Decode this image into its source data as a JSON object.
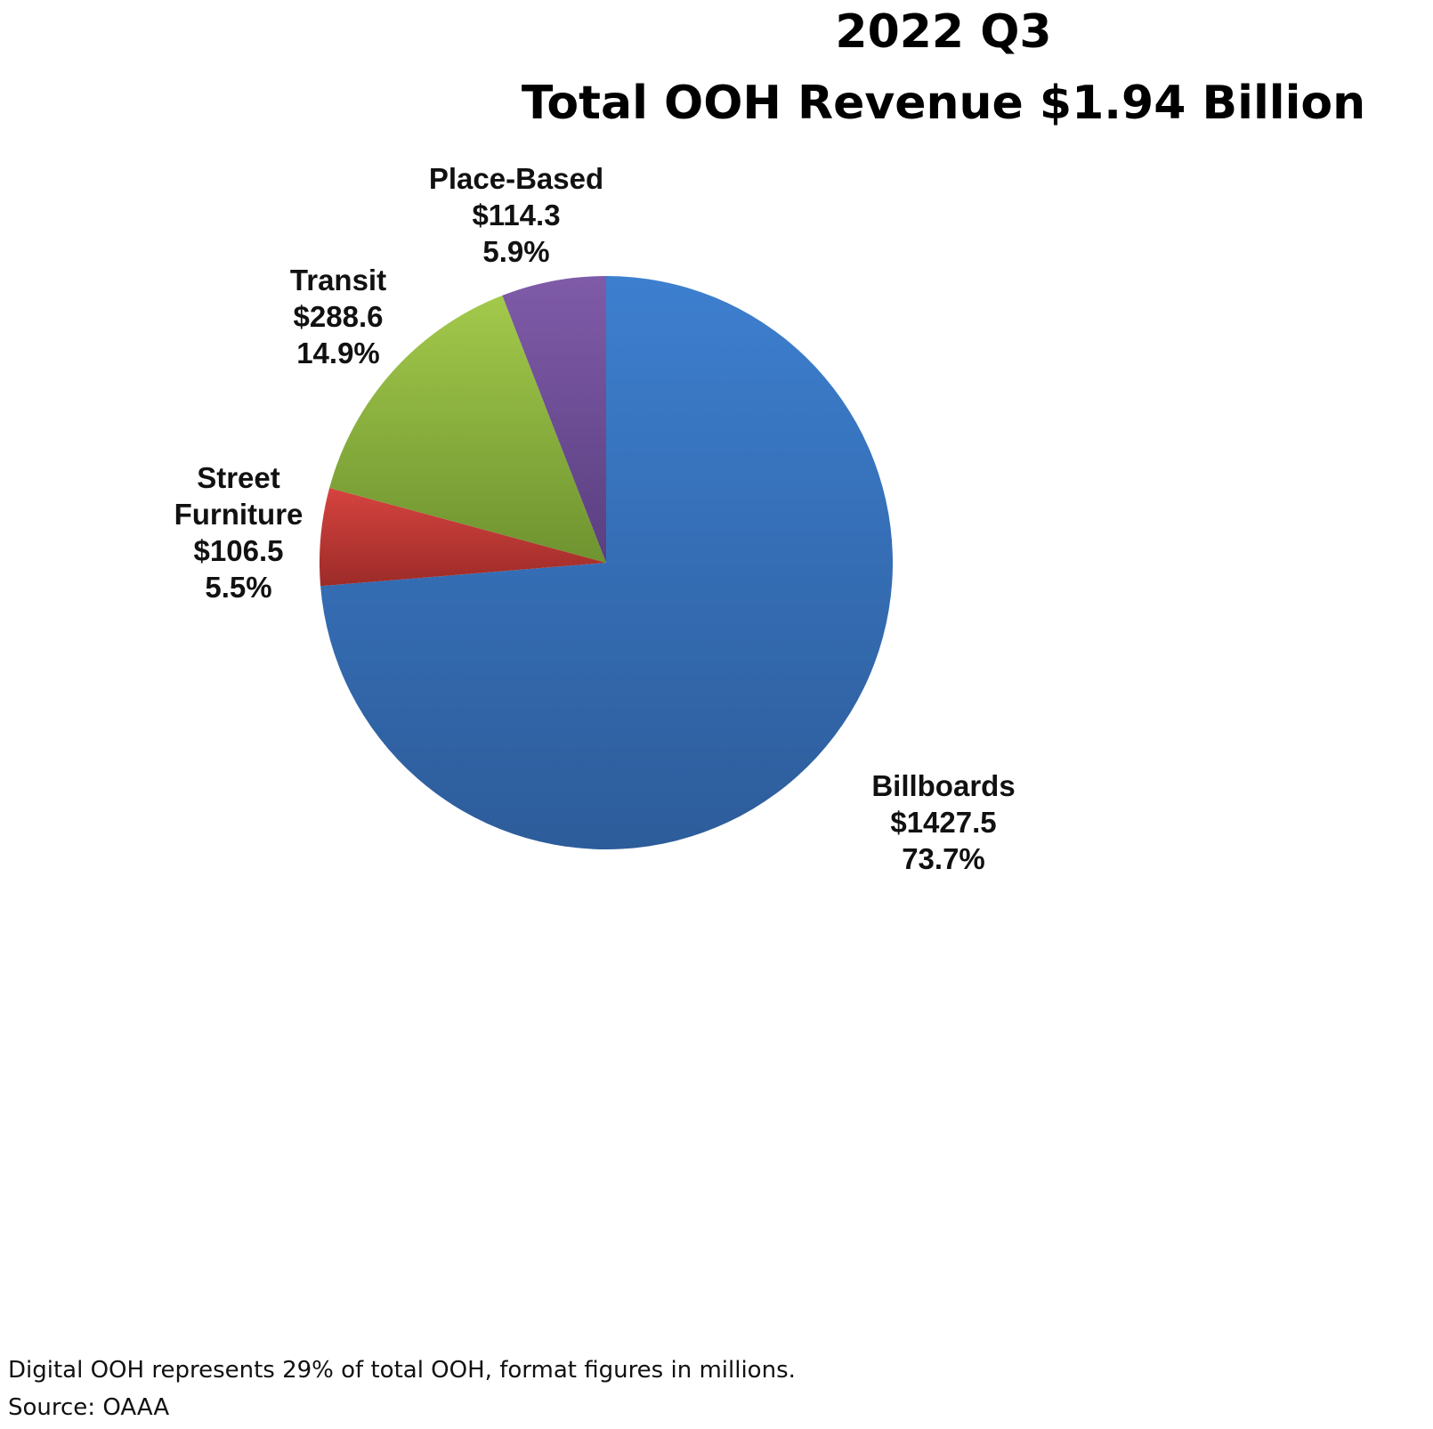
{
  "chart_data": {
    "type": "pie",
    "title": "2022 Q3",
    "subtitle": "Total OOH Revenue $1.94 Billion",
    "slices": [
      {
        "name": "Billboards",
        "value": 1427.5,
        "value_label": "$1427.5",
        "percent": 73.7,
        "percent_label": "73.7%",
        "color_top": "#3d7fcf",
        "color_bottom": "#2d5c9a"
      },
      {
        "name": "Street Furniture",
        "value": 106.5,
        "value_label": "$106.5",
        "percent": 5.5,
        "percent_label": "5.5%",
        "color_top": "#d6433f",
        "color_bottom": "#9c2b28"
      },
      {
        "name": "Transit",
        "value": 288.6,
        "value_label": "$288.6",
        "percent": 14.9,
        "percent_label": "14.9%",
        "color_top": "#a3c94b",
        "color_bottom": "#6e9330"
      },
      {
        "name": "Place-Based",
        "value": 114.3,
        "value_label": "$114.3",
        "percent": 5.9,
        "percent_label": "5.9%",
        "color_top": "#7f5ba8",
        "color_bottom": "#5a3f80"
      }
    ],
    "start_angle": "12 o'clock",
    "direction": "clockwise",
    "legend": "none"
  },
  "labels": {
    "billboards": {
      "line1": "Billboards",
      "line2": "$1427.5",
      "line3": "73.7%"
    },
    "street_furniture": {
      "line1": "Street",
      "line2": "Furniture",
      "line3": "$106.5",
      "line4": "5.5%"
    },
    "transit": {
      "line1": "Transit",
      "line2": "$288.6",
      "line3": "14.9%"
    },
    "place_based": {
      "line1": "Place-Based",
      "line2": "$114.3",
      "line3": "5.9%"
    }
  },
  "footnote": {
    "line1": "Digital OOH represents 29% of total OOH, format figures in millions.",
    "line2": "Source: OAAA"
  }
}
